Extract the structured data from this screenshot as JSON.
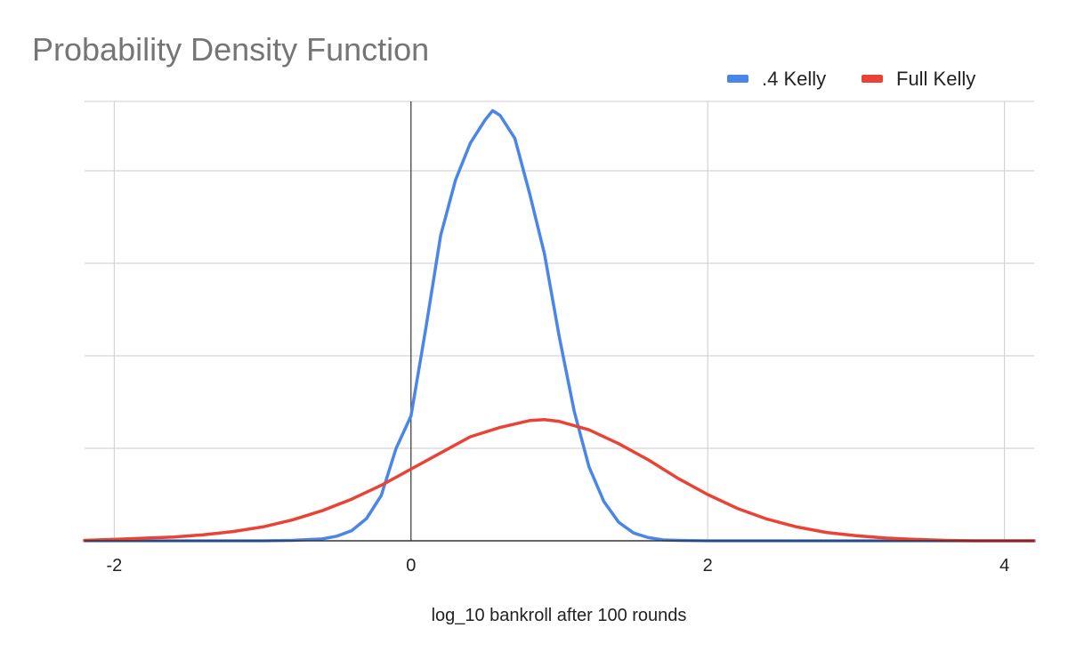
{
  "chart_data": {
    "type": "line",
    "title": "Probability Density Function",
    "xlabel": "log_10 bankroll after 100 rounds",
    "ylabel": "",
    "xlim": [
      -2.2,
      4.2
    ],
    "ylim": [
      0,
      0.95
    ],
    "x_ticks": [
      "-2",
      "0",
      "2",
      "4"
    ],
    "x_tick_values": [
      -2,
      0,
      2,
      4
    ],
    "y_gridlines": [
      0,
      0.2,
      0.4,
      0.6,
      0.8
    ],
    "y_tick_labels_visible": false,
    "grid": true,
    "legend_position": "top-right",
    "series": [
      {
        "name": ".4 Kelly",
        "color": "#4a86e8",
        "x": [
          -2.2,
          -1.0,
          -0.8,
          -0.6,
          -0.5,
          -0.4,
          -0.3,
          -0.2,
          -0.1,
          0.0,
          0.1,
          0.2,
          0.3,
          0.4,
          0.5,
          0.55,
          0.6,
          0.7,
          0.8,
          0.9,
          1.0,
          1.1,
          1.2,
          1.3,
          1.4,
          1.5,
          1.6,
          1.7,
          1.8,
          2.0,
          2.5,
          3.0,
          4.2
        ],
        "values": [
          0.0,
          0.0,
          0.001,
          0.004,
          0.01,
          0.022,
          0.048,
          0.098,
          0.2,
          0.27,
          0.46,
          0.66,
          0.78,
          0.86,
          0.91,
          0.93,
          0.92,
          0.87,
          0.75,
          0.62,
          0.44,
          0.28,
          0.16,
          0.085,
          0.04,
          0.017,
          0.007,
          0.002,
          0.001,
          0.0,
          0.0,
          0.0,
          0.0
        ]
      },
      {
        "name": "Full Kelly",
        "color": "#ea4335",
        "x": [
          -2.2,
          -2.0,
          -1.6,
          -1.4,
          -1.2,
          -1.0,
          -0.8,
          -0.6,
          -0.4,
          -0.2,
          0.0,
          0.2,
          0.4,
          0.6,
          0.8,
          0.9,
          1.0,
          1.2,
          1.4,
          1.6,
          1.8,
          2.0,
          2.2,
          2.4,
          2.6,
          2.8,
          3.0,
          3.2,
          3.4,
          3.6,
          3.8,
          4.2
        ],
        "values": [
          0.001,
          0.003,
          0.008,
          0.013,
          0.02,
          0.03,
          0.045,
          0.065,
          0.09,
          0.12,
          0.155,
          0.19,
          0.225,
          0.245,
          0.26,
          0.262,
          0.258,
          0.24,
          0.21,
          0.175,
          0.135,
          0.1,
          0.07,
          0.047,
          0.03,
          0.018,
          0.011,
          0.006,
          0.003,
          0.001,
          0.0,
          0.0
        ]
      }
    ]
  }
}
